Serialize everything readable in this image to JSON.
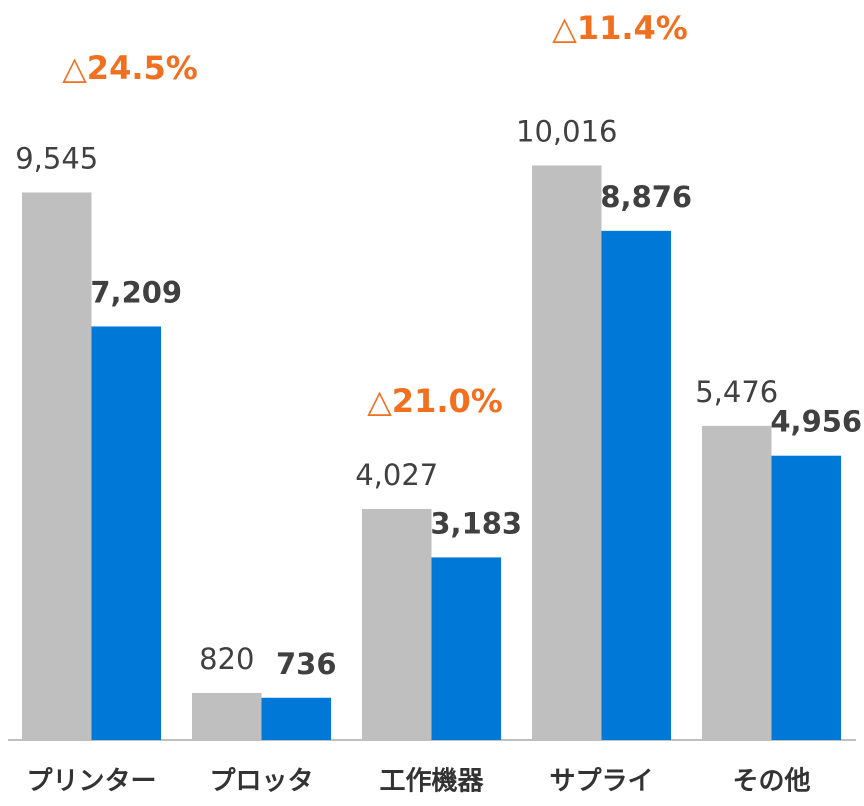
{
  "chart_data": {
    "type": "bar",
    "categories": [
      "プリンター",
      "プロッタ",
      "工作機器",
      "サプライ",
      "その他"
    ],
    "series": [
      {
        "color": "#bfbfbf",
        "values": [
          9545,
          820,
          4027,
          10016,
          5476
        ],
        "value_labels": [
          "9,545",
          "820",
          "4,027",
          "10,016",
          "5,476"
        ]
      },
      {
        "color": "#0078d7",
        "values": [
          7209,
          736,
          3183,
          8876,
          4956
        ],
        "value_labels": [
          "7,209",
          "736",
          "3,183",
          "8,876",
          "4,956"
        ]
      }
    ],
    "annotations": [
      "△24.5%",
      "△21.0%",
      "△11.4%"
    ],
    "annotation_color": "#f07020",
    "ylim": [
      0,
      12900
    ]
  }
}
